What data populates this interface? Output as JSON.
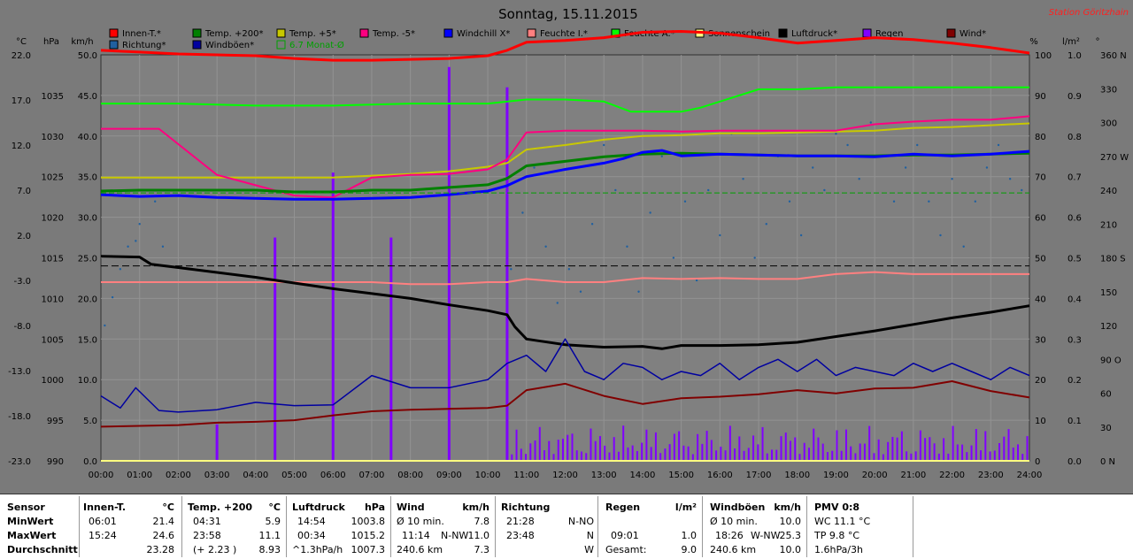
{
  "title": "Sonntag, 15.11.2015",
  "station": "Station Göritzhain",
  "left_axis_units": [
    "°C",
    "hPa",
    "km/h"
  ],
  "right_axis_units": [
    "%",
    "l/m²",
    "°"
  ],
  "legend": [
    {
      "label": "Innen-T.*",
      "color": "#ff0000"
    },
    {
      "label": "Temp. +200*",
      "color": "#008000"
    },
    {
      "label": "Temp. +5*",
      "color": "#c8c800"
    },
    {
      "label": "Temp. -5*",
      "color": "#ff0080"
    },
    {
      "label": "Windchill X*",
      "color": "#0000ff"
    },
    {
      "label": "Feuchte I.*",
      "color": "#ff8080"
    },
    {
      "label": "Feuchte A.*",
      "color": "#00ff00"
    },
    {
      "label": "Sonnenschein",
      "color": "#ffff80"
    },
    {
      "label": "Luftdruck*",
      "color": "#000000"
    },
    {
      "label": "Regen",
      "color": "#8000ff"
    },
    {
      "label": "Wind*",
      "color": "#800000"
    },
    {
      "label": "Richtung*",
      "color": "#2060a0"
    },
    {
      "label": "Windböen*",
      "color": "#0000a0"
    },
    {
      "label": "6.7 Monat-Ø",
      "color": "#00a000"
    }
  ],
  "chart_data": {
    "type": "line",
    "title": "Sonntag, 15.11.2015",
    "x_ticks": [
      "00:00",
      "01:00",
      "02:00",
      "03:00",
      "04:00",
      "05:00",
      "06:00",
      "07:00",
      "08:00",
      "09:00",
      "10:00",
      "11:00",
      "12:00",
      "13:00",
      "14:00",
      "15:00",
      "16:00",
      "17:00",
      "18:00",
      "19:00",
      "20:00",
      "21:00",
      "22:00",
      "23:00",
      "24:00"
    ],
    "axes": {
      "temp_c": {
        "ticks": [
          22.0,
          17.0,
          12.0,
          7.0,
          2.0,
          -3.0,
          -8.0,
          -13.0,
          -18.0,
          -23.0
        ],
        "range": [
          -23,
          22
        ]
      },
      "pressure_hpa": {
        "ticks": [
          1035,
          1030,
          1025,
          1020,
          1015,
          1010,
          1005,
          1000,
          995,
          990
        ],
        "range": [
          990,
          1040
        ]
      },
      "wind_kmh": {
        "ticks": [
          "50.0",
          "45.0",
          "40.0",
          "35.0",
          "30.0",
          "25.0",
          "20.0",
          "15.0",
          "10.0",
          "5.0",
          "0.0"
        ],
        "range": [
          0,
          50
        ]
      },
      "humidity_pct": {
        "ticks": [
          100,
          90,
          80,
          70,
          60,
          50,
          40,
          30,
          20,
          10,
          0
        ],
        "range": [
          0,
          100
        ]
      },
      "rain_lm2": {
        "ticks": [
          "1.0",
          "0.9",
          "0.8",
          "0.7",
          "0.6",
          "0.5",
          "0.4",
          "0.3",
          "0.2",
          "0.1",
          "0.0"
        ],
        "range": [
          0,
          1
        ]
      },
      "direction_deg": {
        "ticks": [
          "360 N",
          "330",
          "300",
          "270 W",
          "240",
          "210",
          "180 S",
          "150",
          "120",
          "90 O",
          "60",
          "30",
          "0 N"
        ],
        "range": [
          0,
          360
        ]
      }
    },
    "series": [
      {
        "name": "Innen-T.*",
        "axis": "temp_c",
        "color": "#ff0000",
        "x": [
          0,
          1,
          2,
          3,
          4,
          5,
          6,
          7,
          8,
          9,
          10,
          10.5,
          11,
          12,
          13,
          14,
          15,
          16,
          17,
          18,
          19,
          20,
          21,
          22,
          23,
          24
        ],
        "y": [
          22.5,
          22.3,
          22.1,
          22.0,
          21.9,
          21.6,
          21.4,
          21.4,
          21.5,
          21.6,
          21.9,
          22.5,
          23.4,
          23.6,
          23.9,
          24.5,
          24.6,
          24.4,
          23.9,
          23.3,
          23.6,
          23.9,
          23.7,
          23.3,
          22.8,
          22.2
        ]
      },
      {
        "name": "Feuchte A.*",
        "axis": "humidity_pct",
        "color": "#00ff00",
        "x": [
          0,
          2,
          4,
          6,
          8,
          10,
          11,
          12,
          13,
          13.7,
          14.2,
          15,
          15.5,
          16,
          17,
          18,
          19,
          20,
          21,
          22,
          23,
          24
        ],
        "y": [
          88,
          88,
          87.5,
          87.5,
          88,
          88,
          89,
          89,
          88.5,
          86,
          86,
          86,
          87,
          88.5,
          91.5,
          91.5,
          92,
          92,
          92,
          92,
          92,
          92
        ]
      },
      {
        "name": "Sonnenschein",
        "axis": "temp_c",
        "color": "#ffff80",
        "x": [
          0,
          24
        ],
        "y": [
          -23.0,
          -23.0
        ]
      },
      {
        "name": "Temp. +5*",
        "axis": "temp_c",
        "color": "#c8c800",
        "x": [
          0,
          2,
          4,
          6,
          8,
          9,
          10,
          10.5,
          11,
          12,
          13,
          14,
          15,
          16,
          17,
          18,
          19,
          20,
          21,
          22,
          23,
          24
        ],
        "y": [
          8.4,
          8.4,
          8.4,
          8.4,
          8.8,
          9.1,
          9.6,
          10.0,
          11.5,
          12.0,
          12.6,
          13.0,
          13.1,
          13.3,
          13.3,
          13.4,
          13.5,
          13.6,
          13.9,
          14.0,
          14.2,
          14.4
        ]
      },
      {
        "name": "Temp. -5*",
        "axis": "temp_c",
        "color": "#ff0080",
        "x": [
          0,
          1.5,
          3,
          5,
          6,
          7,
          8,
          9,
          10,
          10.5,
          11,
          12,
          13,
          14,
          15,
          16,
          17,
          18,
          19,
          20,
          21,
          22,
          23,
          24
        ],
        "y": [
          13.8,
          13.8,
          8.7,
          6.4,
          6.2,
          8.4,
          8.7,
          8.8,
          9.3,
          10.4,
          13.4,
          13.6,
          13.6,
          13.6,
          13.5,
          13.6,
          13.6,
          13.6,
          13.6,
          14.3,
          14.6,
          14.8,
          14.8,
          15.2
        ]
      },
      {
        "name": "Temp. +200*",
        "axis": "temp_c",
        "color": "#008000",
        "x": [
          0,
          1,
          2,
          3,
          4,
          5,
          6,
          7,
          8,
          9,
          10,
          10.5,
          11,
          12,
          13,
          14,
          15,
          16,
          17,
          18,
          19,
          20,
          21,
          22,
          23,
          24
        ],
        "y": [
          6.9,
          7.0,
          7.0,
          7.0,
          7.0,
          6.8,
          6.8,
          7.0,
          7.0,
          7.3,
          7.6,
          8.3,
          9.7,
          10.2,
          10.7,
          11.0,
          11.1,
          11.0,
          10.9,
          10.8,
          10.8,
          10.8,
          10.9,
          10.9,
          11.0,
          11.1
        ]
      },
      {
        "name": "Windchill X*",
        "axis": "temp_c",
        "color": "#0000ff",
        "x": [
          0,
          1,
          2,
          3,
          4,
          5,
          6,
          7,
          8,
          9,
          10,
          10.5,
          11,
          12,
          13,
          13.5,
          14,
          14.5,
          15,
          16,
          17,
          18,
          19,
          20,
          21,
          22,
          23,
          24
        ],
        "y": [
          6.5,
          6.3,
          6.4,
          6.2,
          6.1,
          6.0,
          6.0,
          6.1,
          6.2,
          6.5,
          6.9,
          7.5,
          8.5,
          9.3,
          10.0,
          10.5,
          11.2,
          11.4,
          10.8,
          11.0,
          10.9,
          10.8,
          10.8,
          10.7,
          11.0,
          10.8,
          11.0,
          11.3
        ]
      },
      {
        "name": "Feuchte I.*",
        "axis": "humidity_pct",
        "color": "#ff8080",
        "x": [
          0,
          2,
          4,
          6,
          7,
          8,
          9,
          10,
          10.5,
          11,
          12,
          13,
          14,
          15,
          16,
          17,
          18,
          19,
          20,
          21,
          22,
          23,
          24
        ],
        "y": [
          44,
          44,
          44,
          44,
          44,
          43.5,
          43.5,
          44,
          44,
          44.8,
          44,
          44,
          45,
          44.8,
          45,
          44.8,
          44.8,
          46,
          46.5,
          46,
          46,
          46,
          46
        ]
      },
      {
        "name": "Luftdruck*",
        "axis": "pressure_hpa",
        "color": "#000000",
        "x": [
          0,
          1,
          1.3,
          2,
          3,
          4,
          5,
          6,
          7,
          8,
          9,
          10,
          10.5,
          10.7,
          11,
          12,
          13,
          14,
          14.5,
          15,
          16,
          17,
          18,
          19,
          20,
          21,
          22,
          23,
          24
        ],
        "y": [
          1015.2,
          1015.1,
          1014.2,
          1013.8,
          1013.2,
          1012.6,
          1011.9,
          1011.2,
          1010.6,
          1010.0,
          1009.2,
          1008.5,
          1008.0,
          1006.5,
          1005.0,
          1004.3,
          1004.0,
          1004.1,
          1003.8,
          1004.2,
          1004.2,
          1004.3,
          1004.6,
          1005.3,
          1006.0,
          1006.8,
          1007.6,
          1008.3,
          1009.1
        ]
      },
      {
        "name": "Wind*",
        "axis": "wind_kmh",
        "color": "#800000",
        "x": [
          0,
          1,
          2,
          3,
          4,
          5,
          6,
          7,
          8,
          9,
          10,
          10.5,
          11,
          12,
          13,
          14,
          15,
          16,
          17,
          18,
          19,
          20,
          21,
          22,
          23,
          24
        ],
        "y": [
          4.2,
          4.3,
          4.4,
          4.7,
          4.8,
          5.0,
          5.6,
          6.1,
          6.3,
          6.4,
          6.5,
          6.8,
          8.7,
          9.5,
          8.0,
          7.0,
          7.7,
          7.9,
          8.2,
          8.7,
          8.3,
          8.9,
          9.0,
          9.8,
          8.6,
          7.8
        ]
      },
      {
        "name": "Windböen*",
        "axis": "wind_kmh",
        "color": "#0000a0",
        "x": [
          0,
          0.5,
          0.9,
          1.5,
          2,
          3,
          4,
          5,
          6,
          7,
          8,
          9,
          10,
          10.5,
          11,
          11.5,
          12,
          12.5,
          13,
          13.5,
          14,
          14.5,
          15,
          15.5,
          16,
          16.5,
          17,
          17.5,
          18,
          18.5,
          19,
          19.5,
          20,
          20.5,
          21,
          21.5,
          22,
          22.5,
          23,
          23.5,
          24
        ],
        "y": [
          8.0,
          6.5,
          9.0,
          6.2,
          6.0,
          6.3,
          7.2,
          6.8,
          6.9,
          10.5,
          9.0,
          9.0,
          10.0,
          12.0,
          13.0,
          11.0,
          15.0,
          11.0,
          10.0,
          12.0,
          11.5,
          10.0,
          11.0,
          10.5,
          12.0,
          10.0,
          11.5,
          12.5,
          11.0,
          12.5,
          10.5,
          11.5,
          11.0,
          10.5,
          12.0,
          11.0,
          12.0,
          11.0,
          10.0,
          11.5,
          10.5
        ]
      },
      {
        "name": "6.7 Monat-Ø",
        "axis": "temp_c",
        "color": "#00a000",
        "x": [
          0,
          24
        ],
        "y": [
          6.7,
          6.7
        ]
      }
    ],
    "reference_line": {
      "axis": "humidity_pct",
      "value": 48.0
    },
    "regen": {
      "axis": "rain_lm2",
      "color": "#8000ff",
      "bars": [
        [
          3.0,
          0.09
        ],
        [
          4.5,
          0.55
        ],
        [
          6.0,
          0.71
        ],
        [
          7.5,
          0.55
        ],
        [
          9.0,
          0.97
        ],
        [
          10.5,
          0.92
        ]
      ],
      "area_from": 10.6,
      "area_to": 24.0,
      "area_level": 0.04
    },
    "richtung": {
      "axis": "direction_deg",
      "color": "#2060a0",
      "points": [
        [
          0.1,
          120
        ],
        [
          0.3,
          145
        ],
        [
          0.5,
          170
        ],
        [
          0.7,
          190
        ],
        [
          0.9,
          195
        ],
        [
          1.0,
          210
        ],
        [
          1.2,
          240
        ],
        [
          1.4,
          230
        ],
        [
          1.6,
          190
        ],
        [
          10.6,
          170
        ],
        [
          10.9,
          220
        ],
        [
          11.2,
          260
        ],
        [
          11.5,
          190
        ],
        [
          11.8,
          140
        ],
        [
          12.1,
          170
        ],
        [
          12.4,
          150
        ],
        [
          12.7,
          210
        ],
        [
          13.0,
          280
        ],
        [
          13.3,
          240
        ],
        [
          13.6,
          190
        ],
        [
          13.9,
          150
        ],
        [
          14.2,
          220
        ],
        [
          14.5,
          270
        ],
        [
          14.8,
          180
        ],
        [
          15.1,
          230
        ],
        [
          15.4,
          160
        ],
        [
          15.7,
          240
        ],
        [
          16.0,
          200
        ],
        [
          16.3,
          290
        ],
        [
          16.6,
          250
        ],
        [
          16.9,
          180
        ],
        [
          17.2,
          210
        ],
        [
          17.5,
          270
        ],
        [
          17.8,
          230
        ],
        [
          18.1,
          200
        ],
        [
          18.4,
          260
        ],
        [
          18.7,
          240
        ],
        [
          19.0,
          290
        ],
        [
          19.3,
          280
        ],
        [
          19.6,
          250
        ],
        [
          19.9,
          300
        ],
        [
          20.2,
          270
        ],
        [
          20.5,
          230
        ],
        [
          20.8,
          260
        ],
        [
          21.1,
          280
        ],
        [
          21.4,
          230
        ],
        [
          21.7,
          200
        ],
        [
          22.0,
          250
        ],
        [
          22.3,
          190
        ],
        [
          22.6,
          230
        ],
        [
          22.9,
          260
        ],
        [
          23.2,
          280
        ],
        [
          23.5,
          250
        ],
        [
          23.8,
          240
        ]
      ]
    }
  },
  "stats": {
    "sensor": {
      "head": "Sensor",
      "rows": [
        "MinWert",
        "MaxWert",
        "Durchschnitt"
      ]
    },
    "innen": {
      "head": "Innen-T.",
      "unit": "°C",
      "rows": [
        [
          "06:01",
          "21.4"
        ],
        [
          "15:24",
          "24.6"
        ],
        [
          "",
          "23.28"
        ]
      ]
    },
    "temp200": {
      "head": "Temp. +200",
      "unit": "°C",
      "rows": [
        [
          "04:31",
          "5.9"
        ],
        [
          "23:58",
          "11.1"
        ],
        [
          "(+ 2.23 )",
          "8.93"
        ]
      ]
    },
    "luftdruck": {
      "head": "Luftdruck",
      "unit": "hPa",
      "rows": [
        [
          "14:54",
          "1003.8"
        ],
        [
          "00:34",
          "1015.2"
        ],
        [
          "^1.3hPa/h",
          "1007.3"
        ]
      ]
    },
    "wind": {
      "head": "Wind",
      "unit": "km/h",
      "rows": [
        [
          "Ø 10 min.",
          "",
          "7.8"
        ],
        [
          "11:14",
          "N-NW",
          "11.0"
        ],
        [
          "240.6 km",
          "",
          "7.3"
        ]
      ]
    },
    "richtung": {
      "head": "Richtung",
      "rows": [
        [
          "21:28",
          "N-NO"
        ],
        [
          "23:48",
          "N"
        ],
        [
          "",
          "W"
        ]
      ]
    },
    "regen": {
      "head": "Regen",
      "unit": "l/m²",
      "rows": [
        [
          "",
          ""
        ],
        [
          "09:01",
          "1.0"
        ],
        [
          "Gesamt:",
          "9.0"
        ]
      ]
    },
    "windboeen": {
      "head": "Windböen",
      "unit": "km/h",
      "rows": [
        [
          "Ø 10 min.",
          "",
          "10.0"
        ],
        [
          "18:26",
          "W-NW",
          "25.3"
        ],
        [
          "240.6 km",
          "",
          "10.0"
        ]
      ]
    },
    "pmv": {
      "head": "PMV 0:8",
      "rows": [
        "WC 11.1 °C",
        "TP 9.8 °C",
        "1.6hPa/3h"
      ]
    }
  }
}
